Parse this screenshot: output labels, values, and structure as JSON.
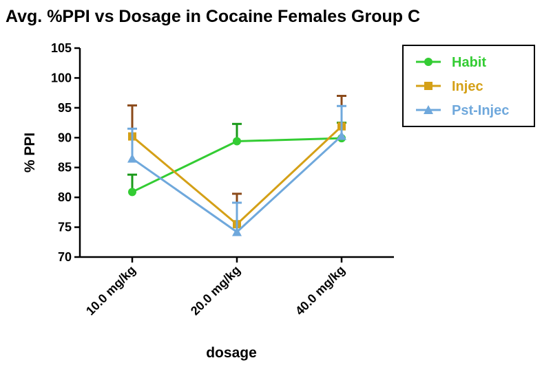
{
  "chart_data": {
    "type": "line",
    "title": "Avg. %PPI vs Dosage in Cocaine Females Group C",
    "xlabel": "dosage",
    "ylabel": "% PPI",
    "categories": [
      "10.0 mg/kg",
      "20.0 mg/kg",
      "40.0 mg/kg"
    ],
    "ylim": [
      70,
      105
    ],
    "yticks": [
      70,
      75,
      80,
      85,
      90,
      95,
      100,
      105
    ],
    "grid": false,
    "legend_position": "top-right",
    "series": [
      {
        "name": "Habit",
        "marker": "circle",
        "color": "#33cc33",
        "error_color": "#1a9a1a",
        "values": [
          80.9,
          89.4,
          89.9
        ],
        "errors": [
          2.9,
          2.9,
          2.6
        ]
      },
      {
        "name": "Injec",
        "marker": "square",
        "color": "#d4a017",
        "error_color": "#8b4a1a",
        "values": [
          90.2,
          75.5,
          91.9
        ],
        "errors": [
          5.2,
          5.1,
          5.1
        ]
      },
      {
        "name": "Pst-Injec",
        "marker": "triangle",
        "color": "#6fa8dc",
        "error_color": "#6fa8dc",
        "values": [
          86.5,
          74.2,
          90.3
        ],
        "errors": [
          5.0,
          4.9,
          5.0
        ]
      }
    ]
  }
}
